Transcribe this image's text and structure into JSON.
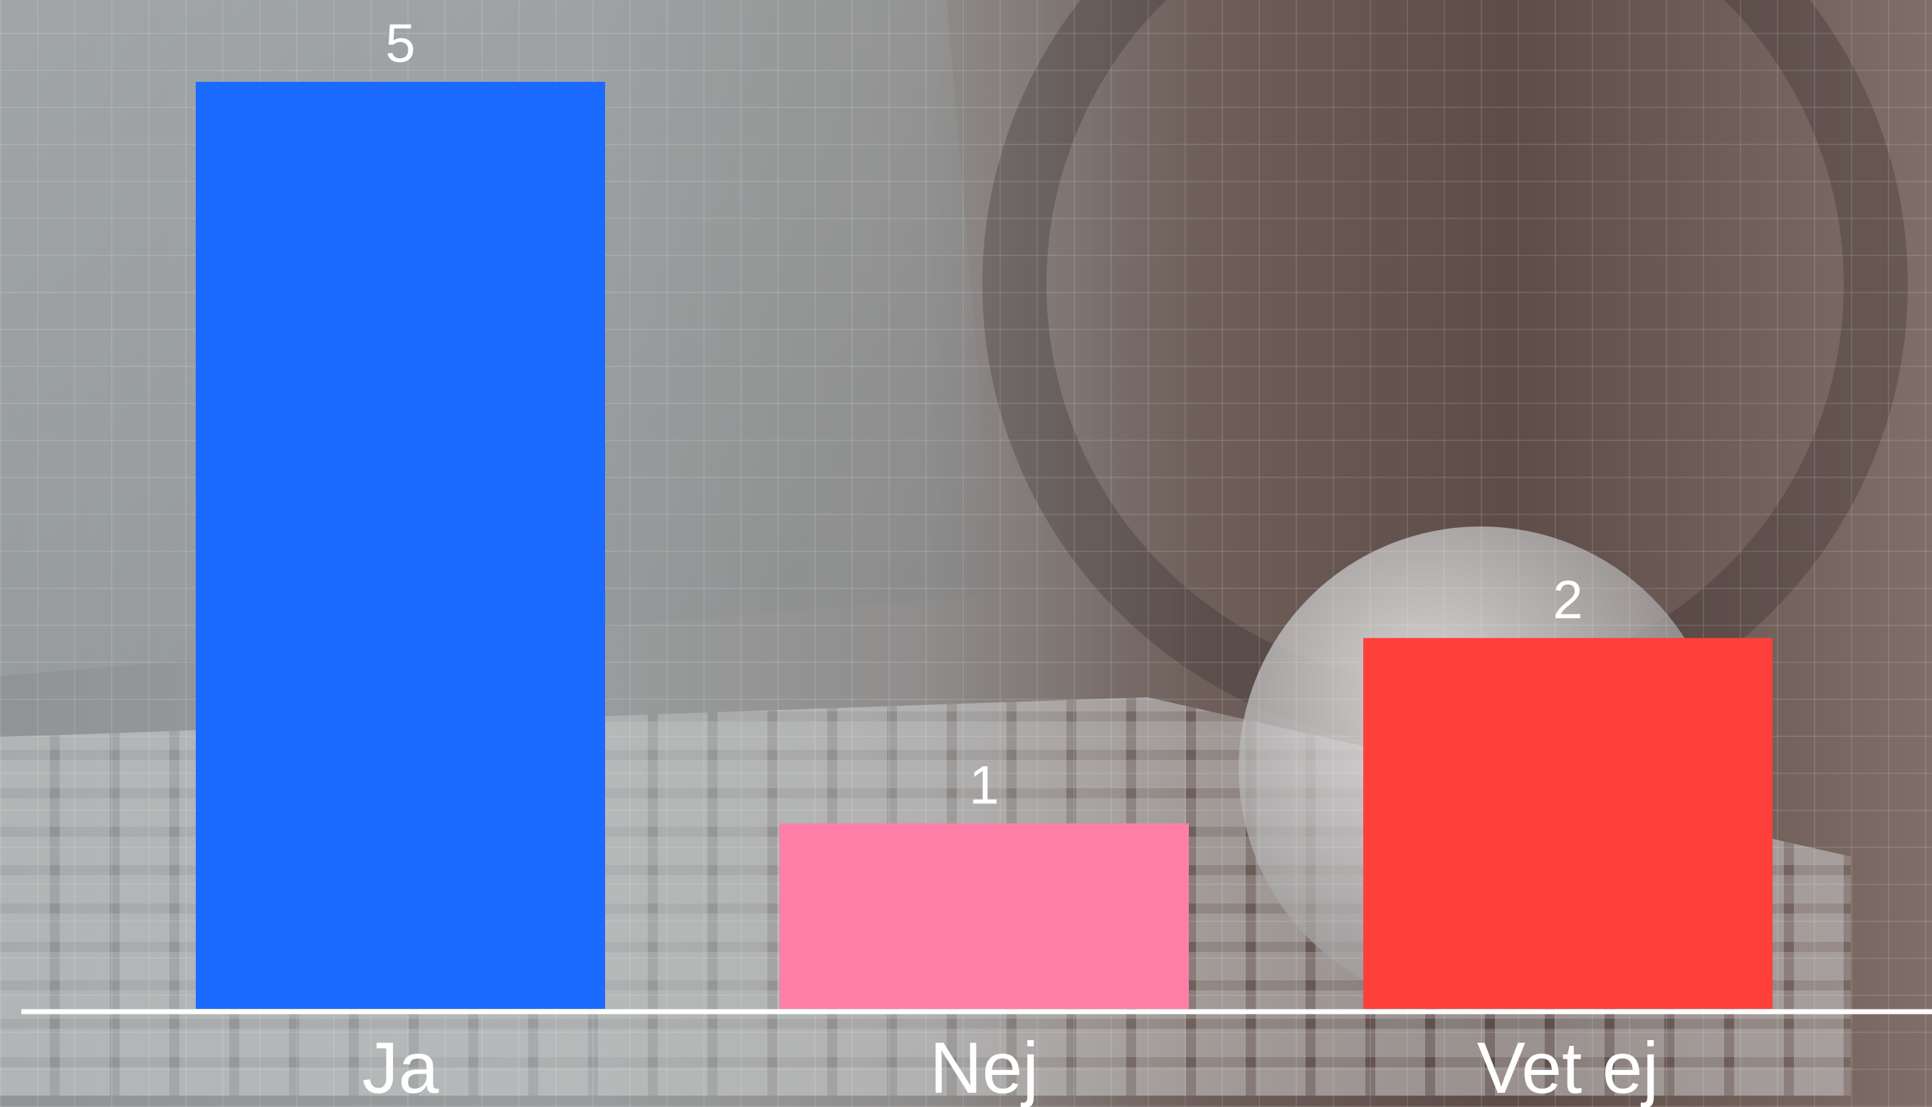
{
  "chart_data": {
    "type": "bar",
    "title": "",
    "xlabel": "",
    "ylabel": "",
    "categories": [
      "Ja",
      "Nej",
      "Vet ej"
    ],
    "values": [
      5,
      1,
      2
    ],
    "colors": [
      "#1a6aff",
      "#ff7fa8",
      "#ff403a"
    ],
    "ylim": [
      0,
      5
    ],
    "data_labels": true,
    "grid": false,
    "legend": "none"
  },
  "background": {
    "description_icon": "laptop-globe-photo"
  }
}
